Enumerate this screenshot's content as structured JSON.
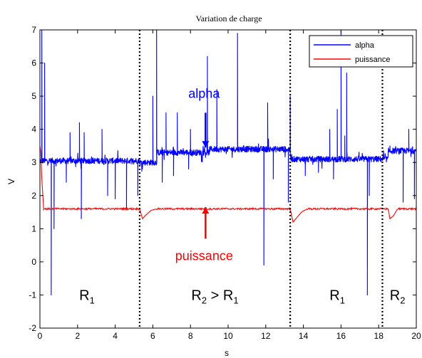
{
  "chart_data": {
    "type": "line",
    "title": "Variation de charge",
    "xlabel": "s",
    "ylabel": "V",
    "xlim": [
      0,
      20
    ],
    "ylim": [
      -2,
      7
    ],
    "x_ticks": [
      0,
      2,
      4,
      6,
      8,
      10,
      12,
      14,
      16,
      18,
      20
    ],
    "y_ticks": [
      -2,
      -1,
      0,
      1,
      2,
      3,
      4,
      5,
      6,
      7
    ],
    "grid": false,
    "legend_position": "top-right",
    "series": [
      {
        "name": "alpha",
        "color": "#0000ff",
        "base_segments": [
          {
            "x_start": 0.0,
            "x_end": 5.3,
            "level": 3.05
          },
          {
            "x_start": 5.3,
            "x_end": 6.2,
            "level": 3.0
          },
          {
            "x_start": 6.2,
            "x_end": 9.0,
            "level": 3.3
          },
          {
            "x_start": 9.0,
            "x_end": 13.3,
            "level": 3.4
          },
          {
            "x_start": 13.3,
            "x_end": 18.5,
            "level": 3.1
          },
          {
            "x_start": 18.5,
            "x_end": 20.0,
            "level": 3.35
          }
        ],
        "spikes": [
          {
            "x": 0.1,
            "y": 7.0
          },
          {
            "x": 0.25,
            "y": 6.0
          },
          {
            "x": 0.6,
            "y": -1.0
          },
          {
            "x": 0.75,
            "y": 1.0
          },
          {
            "x": 1.4,
            "y": 2.4
          },
          {
            "x": 1.6,
            "y": 3.9
          },
          {
            "x": 2.1,
            "y": 4.2
          },
          {
            "x": 2.2,
            "y": 1.3
          },
          {
            "x": 2.35,
            "y": 3.9
          },
          {
            "x": 3.3,
            "y": 4.0
          },
          {
            "x": 3.6,
            "y": 2.0
          },
          {
            "x": 4.0,
            "y": 1.9
          },
          {
            "x": 4.6,
            "y": 1.6
          },
          {
            "x": 5.2,
            "y": 2.0
          },
          {
            "x": 6.0,
            "y": 5.0
          },
          {
            "x": 6.2,
            "y": 7.0
          },
          {
            "x": 6.5,
            "y": 2.4
          },
          {
            "x": 6.7,
            "y": 4.5
          },
          {
            "x": 7.1,
            "y": 2.6
          },
          {
            "x": 7.3,
            "y": 4.5
          },
          {
            "x": 7.9,
            "y": 2.8
          },
          {
            "x": 8.0,
            "y": 4.0
          },
          {
            "x": 8.9,
            "y": 6.2
          },
          {
            "x": 9.4,
            "y": 5.2
          },
          {
            "x": 10.5,
            "y": 6.9
          },
          {
            "x": 11.9,
            "y": -0.1
          },
          {
            "x": 12.1,
            "y": 4.8
          },
          {
            "x": 12.4,
            "y": 2.5
          },
          {
            "x": 13.2,
            "y": 1.8
          },
          {
            "x": 13.3,
            "y": 5.0
          },
          {
            "x": 14.1,
            "y": 2.6
          },
          {
            "x": 14.8,
            "y": 2.7
          },
          {
            "x": 15.4,
            "y": 4.0
          },
          {
            "x": 15.6,
            "y": 2.5
          },
          {
            "x": 15.8,
            "y": 4.6
          },
          {
            "x": 16.0,
            "y": 7.0
          },
          {
            "x": 16.2,
            "y": 3.8
          },
          {
            "x": 16.3,
            "y": 5.7
          },
          {
            "x": 17.4,
            "y": -1.0
          },
          {
            "x": 17.5,
            "y": 2.0
          },
          {
            "x": 18.6,
            "y": 3.5
          },
          {
            "x": 19.3,
            "y": 1.8
          },
          {
            "x": 19.6,
            "y": 4.0
          },
          {
            "x": 19.9,
            "y": 1.9
          }
        ]
      },
      {
        "name": "puissance",
        "color": "#ff0000",
        "points": [
          {
            "x": 0.0,
            "y": 3.5
          },
          {
            "x": 0.05,
            "y": 3.3
          },
          {
            "x": 0.1,
            "y": 2.5
          },
          {
            "x": 0.2,
            "y": 1.6
          },
          {
            "x": 5.3,
            "y": 1.6
          },
          {
            "x": 5.45,
            "y": 1.3
          },
          {
            "x": 5.6,
            "y": 1.4
          },
          {
            "x": 5.9,
            "y": 1.55
          },
          {
            "x": 6.2,
            "y": 1.6
          },
          {
            "x": 13.3,
            "y": 1.6
          },
          {
            "x": 13.45,
            "y": 1.2
          },
          {
            "x": 13.6,
            "y": 1.3
          },
          {
            "x": 13.9,
            "y": 1.5
          },
          {
            "x": 14.2,
            "y": 1.6
          },
          {
            "x": 18.5,
            "y": 1.6
          },
          {
            "x": 18.6,
            "y": 1.3
          },
          {
            "x": 18.8,
            "y": 1.4
          },
          {
            "x": 19.0,
            "y": 1.6
          },
          {
            "x": 20.0,
            "y": 1.6
          }
        ]
      }
    ],
    "vertical_dotted_lines": [
      5.3,
      13.3,
      18.2
    ],
    "regions": [
      {
        "x": 2.5,
        "y": -1.0,
        "main": "R",
        "sub": "1",
        "mid": "",
        "main2": "",
        "sub2": ""
      },
      {
        "x": 9.3,
        "y": -1.0,
        "main": "R",
        "sub": "2",
        "mid": " > ",
        "main2": "R",
        "sub2": "1"
      },
      {
        "x": 15.8,
        "y": -1.0,
        "main": "R",
        "sub": "1",
        "mid": "",
        "main2": "",
        "sub2": ""
      },
      {
        "x": 19.0,
        "y": -1.0,
        "main": "R",
        "sub": "2",
        "mid": "",
        "main2": "",
        "sub2": ""
      }
    ],
    "annotations": [
      {
        "text": "alpha",
        "color": "#0000ff",
        "x": 8.8,
        "text_y": 4.95,
        "arrow_from_y": 4.5,
        "arrow_to_y": 3.45
      },
      {
        "text": "puissance",
        "color": "#ff0000",
        "x": 8.8,
        "text_y": 0.05,
        "arrow_from_y": 0.7,
        "arrow_to_y": 1.65
      }
    ]
  }
}
